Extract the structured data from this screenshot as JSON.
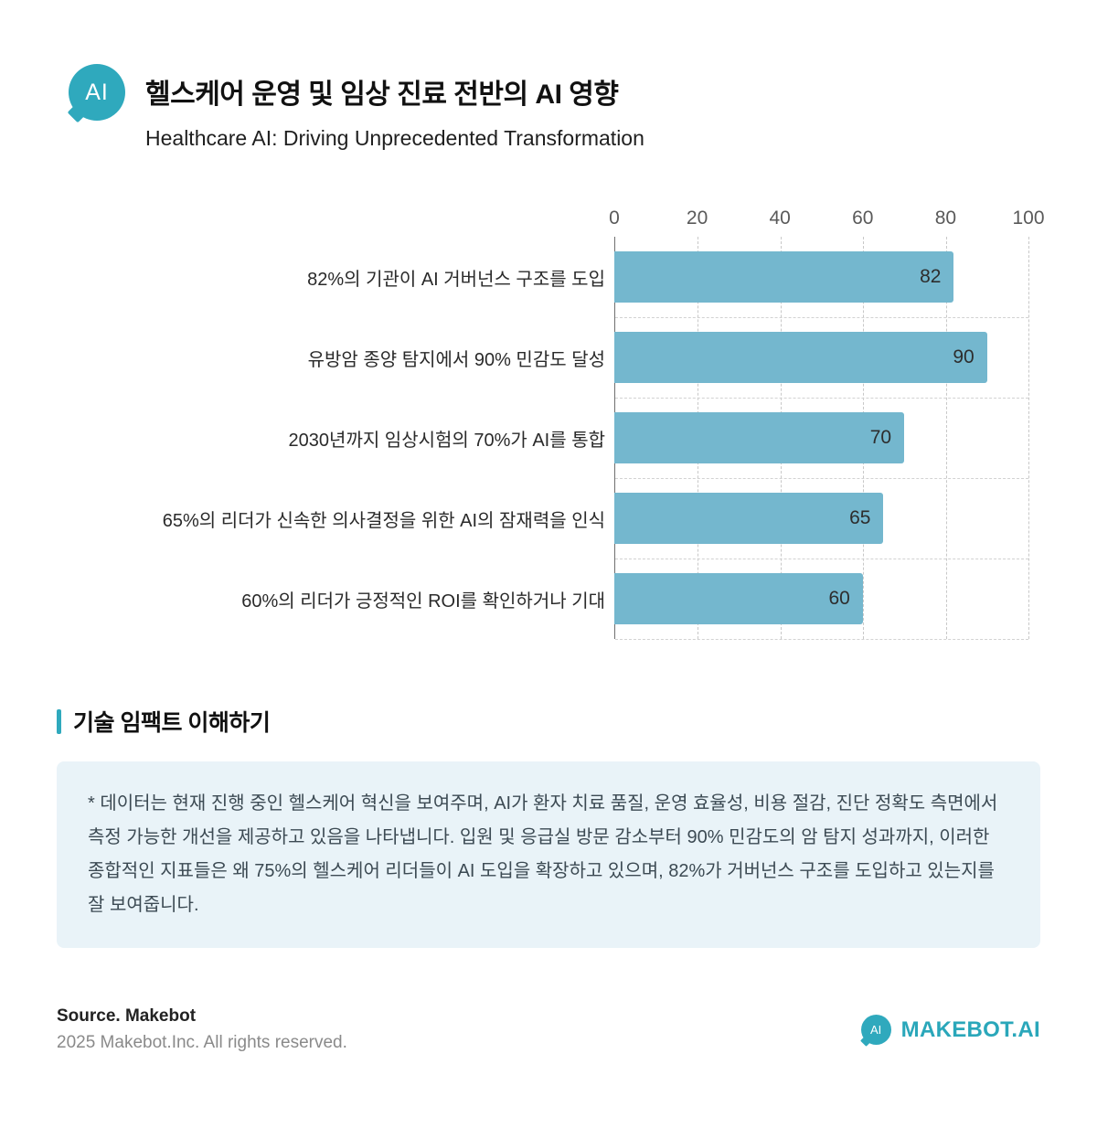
{
  "header": {
    "logo_text": "AI",
    "title": "헬스케어 운영 및 임상 진료 전반의 AI 영향",
    "subtitle": "Healthcare AI: Driving Unprecedented Transformation"
  },
  "chart_data": {
    "type": "bar",
    "orientation": "horizontal",
    "categories": [
      "82%의 기관이 AI 거버넌스 구조를 도입",
      "유방암 종양 탐지에서 90% 민감도 달성",
      "2030년까지 임상시험의 70%가 AI를 통합",
      "65%의 리더가 신속한 의사결정을 위한 AI의 잠재력을 인식",
      "60%의 리더가 긍정적인 ROI를 확인하거나 기대"
    ],
    "values": [
      82,
      90,
      70,
      65,
      60
    ],
    "xlim": [
      0,
      100
    ],
    "xticks": [
      0,
      20,
      40,
      60,
      80,
      100
    ],
    "grid": "dashed",
    "legend": "none",
    "bar_color": "#74b7ce",
    "value_labels": true
  },
  "section": {
    "heading": "기술 임팩트 이해하기",
    "note": "* 데이터는 현재 진행 중인 헬스케어 혁신을 보여주며, AI가 환자 치료 품질, 운영 효율성, 비용 절감, 진단 정확도 측면에서 측정 가능한 개선을 제공하고 있음을 나타냅니다. 입원 및 응급실 방문 감소부터 90% 민감도의 암 탐지 성과까지, 이러한 종합적인 지표들은 왜 75%의 헬스케어 리더들이 AI 도입을 확장하고 있으며, 82%가 거버넌스 구조를 도입하고 있는지를 잘 보여줍니다."
  },
  "footer": {
    "source_label": "Source. Makebot",
    "copyright": "2025 Makebot.Inc. All rights reserved.",
    "brand_logo_text": "AI",
    "brand_name": "MAKEBOT.AI"
  },
  "colors": {
    "accent": "#2fa9bd",
    "bar": "#74b7ce",
    "note_bg": "#e9f3f8"
  }
}
